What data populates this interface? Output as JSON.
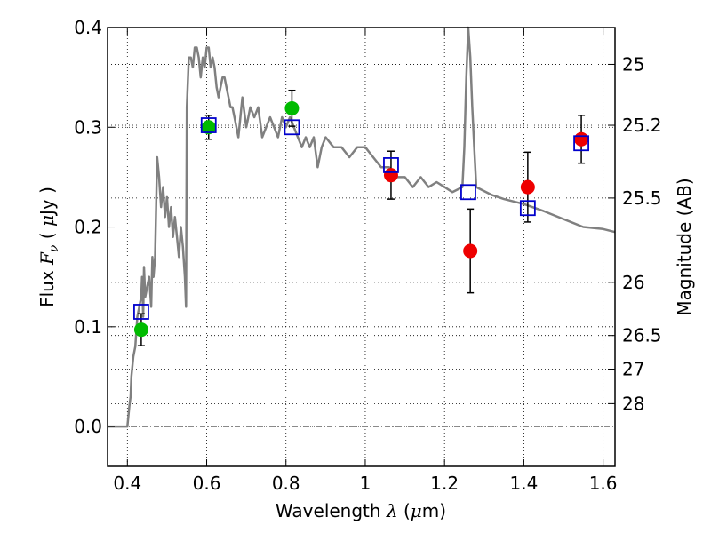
{
  "chart_data": {
    "type": "scatter",
    "xlabel": {
      "prefix": "Wavelength  ",
      "symbol": "λ",
      "suffix": " (",
      "unit_symbol": "μ",
      "unit_rest": "m)"
    },
    "ylabel": {
      "prefix": "Flux  ",
      "symbol": "F",
      "subscript": "ν",
      "mid": "  ( ",
      "unit_symbol": "μ",
      "unit_rest": "Jy )"
    },
    "y2label": "Magnitude (AB)",
    "xlim": [
      0.35,
      1.63
    ],
    "ylim": [
      -0.04,
      0.4
    ],
    "x_ticks": [
      {
        "v": 0.4,
        "label": "0.4"
      },
      {
        "v": 0.6,
        "label": "0.6"
      },
      {
        "v": 0.8,
        "label": "0.8"
      },
      {
        "v": 1.0,
        "label": "1"
      },
      {
        "v": 1.2,
        "label": "1.2"
      },
      {
        "v": 1.4,
        "label": "1.4"
      },
      {
        "v": 1.6,
        "label": "1.6"
      }
    ],
    "y_ticks": [
      {
        "v": 0.0,
        "label": "0.0"
      },
      {
        "v": 0.1,
        "label": "0.1"
      },
      {
        "v": 0.2,
        "label": "0.2"
      },
      {
        "v": 0.3,
        "label": "0.3"
      },
      {
        "v": 0.4,
        "label": "0.4"
      }
    ],
    "y2_ticks": [
      {
        "mag": 25,
        "label": "25"
      },
      {
        "mag": 25.2,
        "label": "25.2"
      },
      {
        "mag": 25.5,
        "label": "25.5"
      },
      {
        "mag": 26,
        "label": "26"
      },
      {
        "mag": 26.5,
        "label": "26.5"
      },
      {
        "mag": 27,
        "label": "27"
      },
      {
        "mag": 28,
        "label": "28"
      }
    ],
    "grid": true,
    "colors": {
      "sed": "#808080",
      "green": "#00bb00",
      "red": "#ee0000",
      "model": "#0000cc",
      "errorbar": "#000000"
    },
    "sed_model": {
      "x": [
        0.35,
        0.4,
        0.405,
        0.408,
        0.41,
        0.415,
        0.42,
        0.425,
        0.43,
        0.435,
        0.437,
        0.44,
        0.442,
        0.445,
        0.45,
        0.455,
        0.46,
        0.463,
        0.466,
        0.47,
        0.475,
        0.48,
        0.485,
        0.49,
        0.495,
        0.5,
        0.505,
        0.51,
        0.515,
        0.52,
        0.525,
        0.53,
        0.535,
        0.54,
        0.545,
        0.548,
        0.55,
        0.555,
        0.56,
        0.565,
        0.57,
        0.575,
        0.58,
        0.585,
        0.59,
        0.595,
        0.6,
        0.605,
        0.61,
        0.615,
        0.62,
        0.625,
        0.63,
        0.635,
        0.64,
        0.645,
        0.65,
        0.655,
        0.66,
        0.665,
        0.67,
        0.675,
        0.68,
        0.69,
        0.7,
        0.71,
        0.72,
        0.73,
        0.74,
        0.75,
        0.76,
        0.77,
        0.78,
        0.79,
        0.8,
        0.81,
        0.82,
        0.83,
        0.84,
        0.85,
        0.86,
        0.87,
        0.88,
        0.89,
        0.9,
        0.92,
        0.94,
        0.96,
        0.98,
        1.0,
        1.02,
        1.04,
        1.05,
        1.06,
        1.08,
        1.1,
        1.12,
        1.14,
        1.16,
        1.18,
        1.2,
        1.22,
        1.235,
        1.245,
        1.25,
        1.255,
        1.26,
        1.265,
        1.27,
        1.275,
        1.28,
        1.3,
        1.32,
        1.35,
        1.4,
        1.45,
        1.5,
        1.55,
        1.6,
        1.63
      ],
      "y": [
        0.0,
        0.0,
        0.02,
        0.03,
        0.05,
        0.07,
        0.08,
        0.11,
        0.12,
        0.13,
        0.15,
        0.11,
        0.16,
        0.13,
        0.14,
        0.15,
        0.12,
        0.17,
        0.15,
        0.17,
        0.27,
        0.25,
        0.22,
        0.24,
        0.21,
        0.23,
        0.2,
        0.22,
        0.19,
        0.21,
        0.19,
        0.17,
        0.2,
        0.18,
        0.15,
        0.12,
        0.32,
        0.37,
        0.37,
        0.36,
        0.38,
        0.38,
        0.37,
        0.35,
        0.37,
        0.36,
        0.38,
        0.38,
        0.36,
        0.37,
        0.36,
        0.34,
        0.33,
        0.34,
        0.35,
        0.35,
        0.34,
        0.33,
        0.32,
        0.32,
        0.31,
        0.3,
        0.29,
        0.33,
        0.3,
        0.32,
        0.31,
        0.32,
        0.29,
        0.3,
        0.31,
        0.3,
        0.29,
        0.31,
        0.3,
        0.31,
        0.3,
        0.29,
        0.28,
        0.29,
        0.28,
        0.29,
        0.26,
        0.28,
        0.29,
        0.28,
        0.28,
        0.27,
        0.28,
        0.28,
        0.27,
        0.26,
        0.26,
        0.26,
        0.25,
        0.25,
        0.24,
        0.25,
        0.24,
        0.245,
        0.24,
        0.235,
        0.238,
        0.24,
        0.28,
        0.35,
        0.4,
        0.37,
        0.32,
        0.28,
        0.24,
        0.236,
        0.232,
        0.228,
        0.223,
        0.216,
        0.208,
        0.2,
        0.198,
        0.195
      ]
    },
    "green_points": [
      {
        "x": 0.435,
        "y": 0.097,
        "err": 0.016
      },
      {
        "x": 0.605,
        "y": 0.3,
        "err": 0.012
      },
      {
        "x": 0.815,
        "y": 0.319,
        "err": 0.018
      }
    ],
    "red_points": [
      {
        "x": 1.065,
        "y": 0.252,
        "err": 0.024
      },
      {
        "x": 1.265,
        "y": 0.176,
        "err": 0.042
      },
      {
        "x": 1.41,
        "y": 0.24,
        "err": 0.035
      },
      {
        "x": 1.545,
        "y": 0.288,
        "err": 0.024
      }
    ],
    "model_points": [
      {
        "x": 0.435,
        "y": 0.115
      },
      {
        "x": 0.605,
        "y": 0.302
      },
      {
        "x": 0.815,
        "y": 0.3
      },
      {
        "x": 1.065,
        "y": 0.262
      },
      {
        "x": 1.26,
        "y": 0.235
      },
      {
        "x": 1.41,
        "y": 0.219
      },
      {
        "x": 1.545,
        "y": 0.284
      }
    ]
  }
}
